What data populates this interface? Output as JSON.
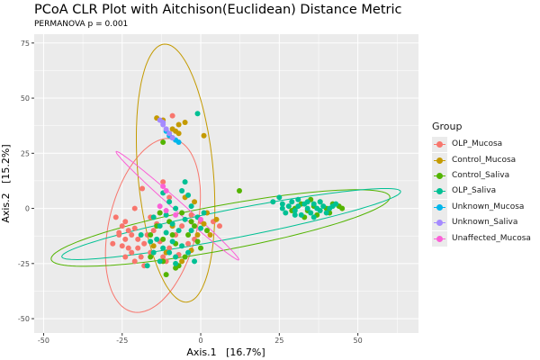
{
  "chart_data": {
    "type": "scatter",
    "title": "PCoA CLR Plot with Aitchison(Euclidean) Distance Metric",
    "subtitle": "PERMANOVA p = 0.001",
    "xlabel": "Axis.1   [16.7%]",
    "ylabel": "Axis.2   [15.2%]",
    "xlim": [
      -53,
      69.3
    ],
    "ylim": [
      -56.5,
      79
    ],
    "xticks": [
      -50,
      -25,
      0,
      25,
      50
    ],
    "xtick_labels": [
      "-50",
      "-25",
      "0",
      "25",
      "50"
    ],
    "yticks": [
      -50,
      -25,
      0,
      25,
      50,
      75
    ],
    "ytick_labels": [
      "-50",
      "-25",
      "0",
      "25",
      "50",
      "75"
    ],
    "grid": true,
    "legend": {
      "title": "Group",
      "placement": "right"
    },
    "series": [
      {
        "name": "OLP_Mucosa",
        "color": "#F8766D",
        "points": [
          [
            -27,
            -4
          ],
          [
            -25,
            -8
          ],
          [
            -24,
            -6
          ],
          [
            -23,
            -10
          ],
          [
            -22,
            -12
          ],
          [
            -21,
            -9
          ],
          [
            -20,
            -14
          ],
          [
            -24,
            -14
          ],
          [
            -26,
            -12
          ],
          [
            -25,
            -17
          ],
          [
            -23,
            -18
          ],
          [
            -22,
            -20
          ],
          [
            -20,
            -18
          ],
          [
            -19,
            -22
          ],
          [
            -21,
            -24
          ],
          [
            -18,
            -16
          ],
          [
            -17,
            -12
          ],
          [
            -16,
            -20
          ],
          [
            -15,
            -10
          ],
          [
            -14,
            -7
          ],
          [
            -13,
            -15
          ],
          [
            -12,
            -22
          ],
          [
            -10,
            -18
          ],
          [
            -8,
            -12
          ],
          [
            -6,
            -8
          ],
          [
            -4,
            -16
          ],
          [
            -2,
            -14
          ],
          [
            0,
            -6
          ],
          [
            4,
            -6
          ],
          [
            6,
            -8
          ],
          [
            -21,
            0
          ],
          [
            -18.6,
            9
          ],
          [
            -12,
            12
          ],
          [
            -10,
            5
          ],
          [
            -26,
            -11
          ],
          [
            -9,
            42
          ],
          [
            -13,
            -2
          ],
          [
            -18,
            -26
          ],
          [
            -28,
            -16
          ],
          [
            -11,
            -24
          ],
          [
            -7,
            -21
          ],
          [
            -3,
            -3
          ],
          [
            -16,
            -4
          ],
          [
            -24,
            -22
          ]
        ],
        "ellipse": {
          "center": [
            -15.2,
            -7.7
          ],
          "v1": [
            5.7,
            39.4
          ],
          "v2": [
            14,
            -2
          ]
        }
      },
      {
        "name": "Control_Mucosa",
        "color": "#C49A00",
        "points": [
          [
            -12,
            40
          ],
          [
            -7,
            38
          ],
          [
            -5,
            39
          ],
          [
            -8,
            35
          ],
          [
            -7,
            34
          ],
          [
            -9,
            36
          ],
          [
            1,
            33
          ],
          [
            -14,
            41
          ],
          [
            -5,
            5
          ],
          [
            5,
            -5
          ],
          [
            1,
            -7
          ],
          [
            -1,
            -12
          ],
          [
            -11,
            -20
          ],
          [
            -3,
            -19
          ],
          [
            -6,
            -24
          ],
          [
            -9,
            -8
          ],
          [
            -15,
            -17
          ],
          [
            3,
            -12
          ],
          [
            -2,
            3
          ],
          [
            2,
            -2
          ]
        ],
        "ellipse": {
          "center": [
            -8,
            16
          ],
          "v1": [
            -3.5,
            58.5
          ],
          "v2": [
            12,
            0.7
          ]
        }
      },
      {
        "name": "Control_Saliva",
        "color": "#53B400",
        "points": [
          [
            -14,
            -8
          ],
          [
            -12,
            -14
          ],
          [
            -10,
            -6
          ],
          [
            -8,
            -16
          ],
          [
            -6,
            -2
          ],
          [
            -4,
            -12
          ],
          [
            -2,
            -8
          ],
          [
            0,
            -18
          ],
          [
            -16,
            -22
          ],
          [
            -12,
            -24
          ],
          [
            -7,
            -26
          ],
          [
            -5,
            -22
          ],
          [
            -11,
            -30
          ],
          [
            -3,
            -6
          ],
          [
            -13,
            -2
          ],
          [
            -9,
            -12
          ],
          [
            -1,
            -15
          ],
          [
            2,
            -10
          ],
          [
            -8,
            -27
          ],
          [
            12.3,
            8
          ],
          [
            -12,
            30
          ],
          [
            -16,
            -12
          ],
          [
            30,
            0
          ],
          [
            32,
            2
          ],
          [
            34,
            -1
          ],
          [
            36,
            1
          ],
          [
            38,
            3
          ],
          [
            40,
            0
          ],
          [
            42,
            2
          ],
          [
            44,
            1
          ],
          [
            45,
            0
          ],
          [
            41,
            -2
          ],
          [
            37,
            -3
          ],
          [
            33,
            -4
          ],
          [
            29,
            -1
          ],
          [
            35,
            4
          ]
        ],
        "ellipse": {
          "center": [
            6.3,
            -8.9
          ],
          "v1": [
            53.9,
            14.2
          ],
          "v2": [
            1.3,
            -10
          ]
        }
      },
      {
        "name": "OLP_Saliva",
        "color": "#00C094",
        "points": [
          [
            -15,
            -4
          ],
          [
            -13,
            -8
          ],
          [
            -11,
            -3
          ],
          [
            -9,
            -7
          ],
          [
            -7,
            -10
          ],
          [
            -5,
            -5
          ],
          [
            -3,
            -10
          ],
          [
            -1,
            -4
          ],
          [
            -8,
            0
          ],
          [
            -10,
            3
          ],
          [
            -12,
            7
          ],
          [
            -6,
            8
          ],
          [
            -4,
            6
          ],
          [
            -14,
            -14
          ],
          [
            -12,
            -18
          ],
          [
            -10,
            -20
          ],
          [
            -8,
            -22
          ],
          [
            -6,
            -17
          ],
          [
            -4,
            -20
          ],
          [
            -2,
            -24
          ],
          [
            -17,
            -26
          ],
          [
            -15,
            -20
          ],
          [
            -11,
            -11
          ],
          [
            -9,
            -15
          ],
          [
            -3,
            1
          ],
          [
            0,
            -9
          ],
          [
            1,
            -2
          ],
          [
            -1,
            43
          ],
          [
            -16,
            -15
          ],
          [
            -13,
            -24
          ],
          [
            -8,
            -25
          ],
          [
            -19,
            -12
          ],
          [
            -5,
            12
          ],
          [
            23,
            3
          ],
          [
            25,
            5
          ],
          [
            26,
            0
          ],
          [
            27,
            -2
          ],
          [
            28,
            1
          ],
          [
            29,
            3
          ],
          [
            30,
            -1
          ],
          [
            31,
            1
          ],
          [
            32,
            -3
          ],
          [
            33,
            2
          ],
          [
            34,
            0
          ],
          [
            35,
            -2
          ],
          [
            36,
            2
          ],
          [
            37,
            0
          ],
          [
            38,
            -1
          ],
          [
            39,
            1
          ],
          [
            40,
            -2
          ],
          [
            41,
            0
          ],
          [
            42,
            1
          ],
          [
            43,
            2
          ],
          [
            31,
            4
          ],
          [
            26,
            2
          ],
          [
            36,
            -4
          ],
          [
            30,
            -3
          ],
          [
            38,
            3
          ],
          [
            34,
            3
          ]
        ],
        "ellipse": {
          "center": [
            9.7,
            -7.1
          ],
          "v1": [
            53.9,
            14.8
          ],
          "v2": [
            0.8,
            -6.4
          ]
        }
      },
      {
        "name": "Unknown_Mucosa",
        "color": "#00B6EB",
        "points": [
          [
            -10,
            33
          ],
          [
            -8,
            31
          ],
          [
            -7,
            30
          ],
          [
            -11,
            35
          ],
          [
            -9,
            32
          ]
        ]
      },
      {
        "name": "Unknown_Saliva",
        "color": "#A58AFF",
        "points": [
          [
            -13,
            40
          ],
          [
            -12,
            38
          ],
          [
            -11,
            36
          ],
          [
            -10,
            34
          ],
          [
            -9,
            32
          ],
          [
            -12,
            39
          ]
        ]
      },
      {
        "name": "Unaffected_Mucosa",
        "color": "#FB61D7",
        "points": [
          [
            -12,
            10
          ],
          [
            -11,
            8
          ],
          [
            -13,
            1
          ],
          [
            0,
            -5
          ],
          [
            -11,
            -1
          ],
          [
            -8,
            -3
          ]
        ],
        "ellipse": {
          "center": [
            -7.4,
            1.2
          ],
          "v1": [
            -18.6,
            22.4
          ],
          "v2": [
            6,
            -10.2
          ]
        }
      }
    ]
  }
}
